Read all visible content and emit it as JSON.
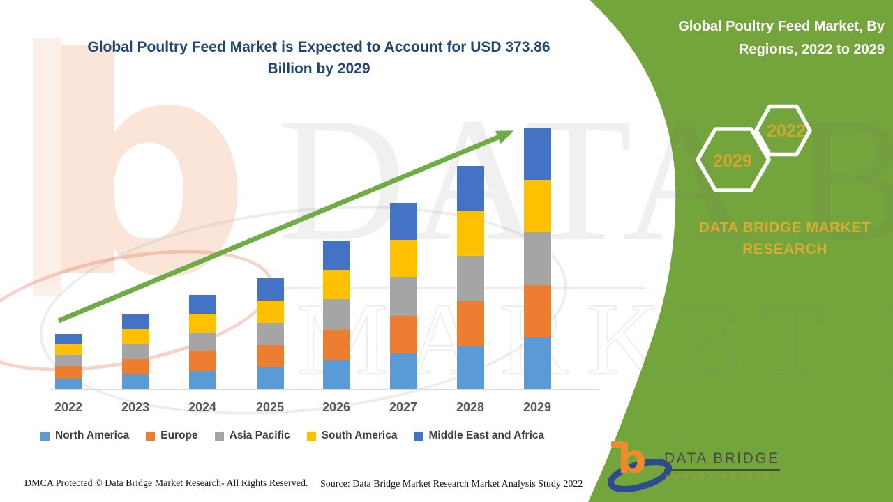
{
  "title": {
    "line1": "Global Poultry Feed Market is Expected to Account for USD 373.86",
    "line2": "Billion by 2029"
  },
  "side_panel": {
    "heading_line1": "Global Poultry Feed Market, By",
    "heading_line2": "Regions, 2022 to 2029",
    "hexagon_left_year": "2029",
    "hexagon_right_year": "2022",
    "brand_line1": "DATA BRIDGE MARKET",
    "brand_line2": "RESEARCH",
    "panel_color": "#74A53C",
    "year_color": "#D5A62E",
    "brand_text_color": "#D9AC33"
  },
  "watermark": {
    "line1": "DATA BRIDGE",
    "line2": "MARKET RESEARCH",
    "mark_letter": "b"
  },
  "logo": {
    "mark_letter": "b",
    "name": "DATA BRIDGE",
    "tagline": "MARKET RESEARCH"
  },
  "footer": {
    "dmca": "DMCA Protected © Data Bridge Market Research- All Rights Reserved.",
    "source": "Source: Data Bridge Market Research Market Analysis Study 2022"
  },
  "chart_data": {
    "type": "bar",
    "stacked": true,
    "unit": "USD Billion",
    "title": "Global Poultry Feed Market, By Regions, 2022 to 2029",
    "categories": [
      "2022",
      "2023",
      "2024",
      "2025",
      "2026",
      "2027",
      "2028",
      "2029"
    ],
    "series": [
      {
        "name": "North America",
        "color": "#5B9BD5",
        "values": [
          15,
          21.5,
          26.5,
          32,
          41.5,
          51,
          62.5,
          74.4
        ]
      },
      {
        "name": "Europe",
        "color": "#ED7D31",
        "values": [
          18,
          22,
          29,
          31.5,
          44,
          54,
          64,
          75
        ]
      },
      {
        "name": "Asia Pacific",
        "color": "#A5A5A5",
        "values": [
          16,
          21,
          26,
          31.5,
          44,
          55,
          64.5,
          75.6
        ]
      },
      {
        "name": "South America",
        "color": "#FFC000",
        "values": [
          15.5,
          21.5,
          26.5,
          32.5,
          41.5,
          54.5,
          65,
          75
        ]
      },
      {
        "name": "Middle East and Africa",
        "color": "#4472C4",
        "values": [
          15,
          21,
          27,
          31.5,
          42.5,
          52.5,
          64,
          73.86
        ]
      }
    ],
    "totals_estimated": [
      79.5,
      107,
      135,
      159,
      213.5,
      267,
      320,
      373.86
    ],
    "ylim": [
      0,
      380
    ],
    "gridlines": false,
    "legend_position": "bottom",
    "trend_arrow": true,
    "trend_arrow_color": "#6FAC45"
  }
}
